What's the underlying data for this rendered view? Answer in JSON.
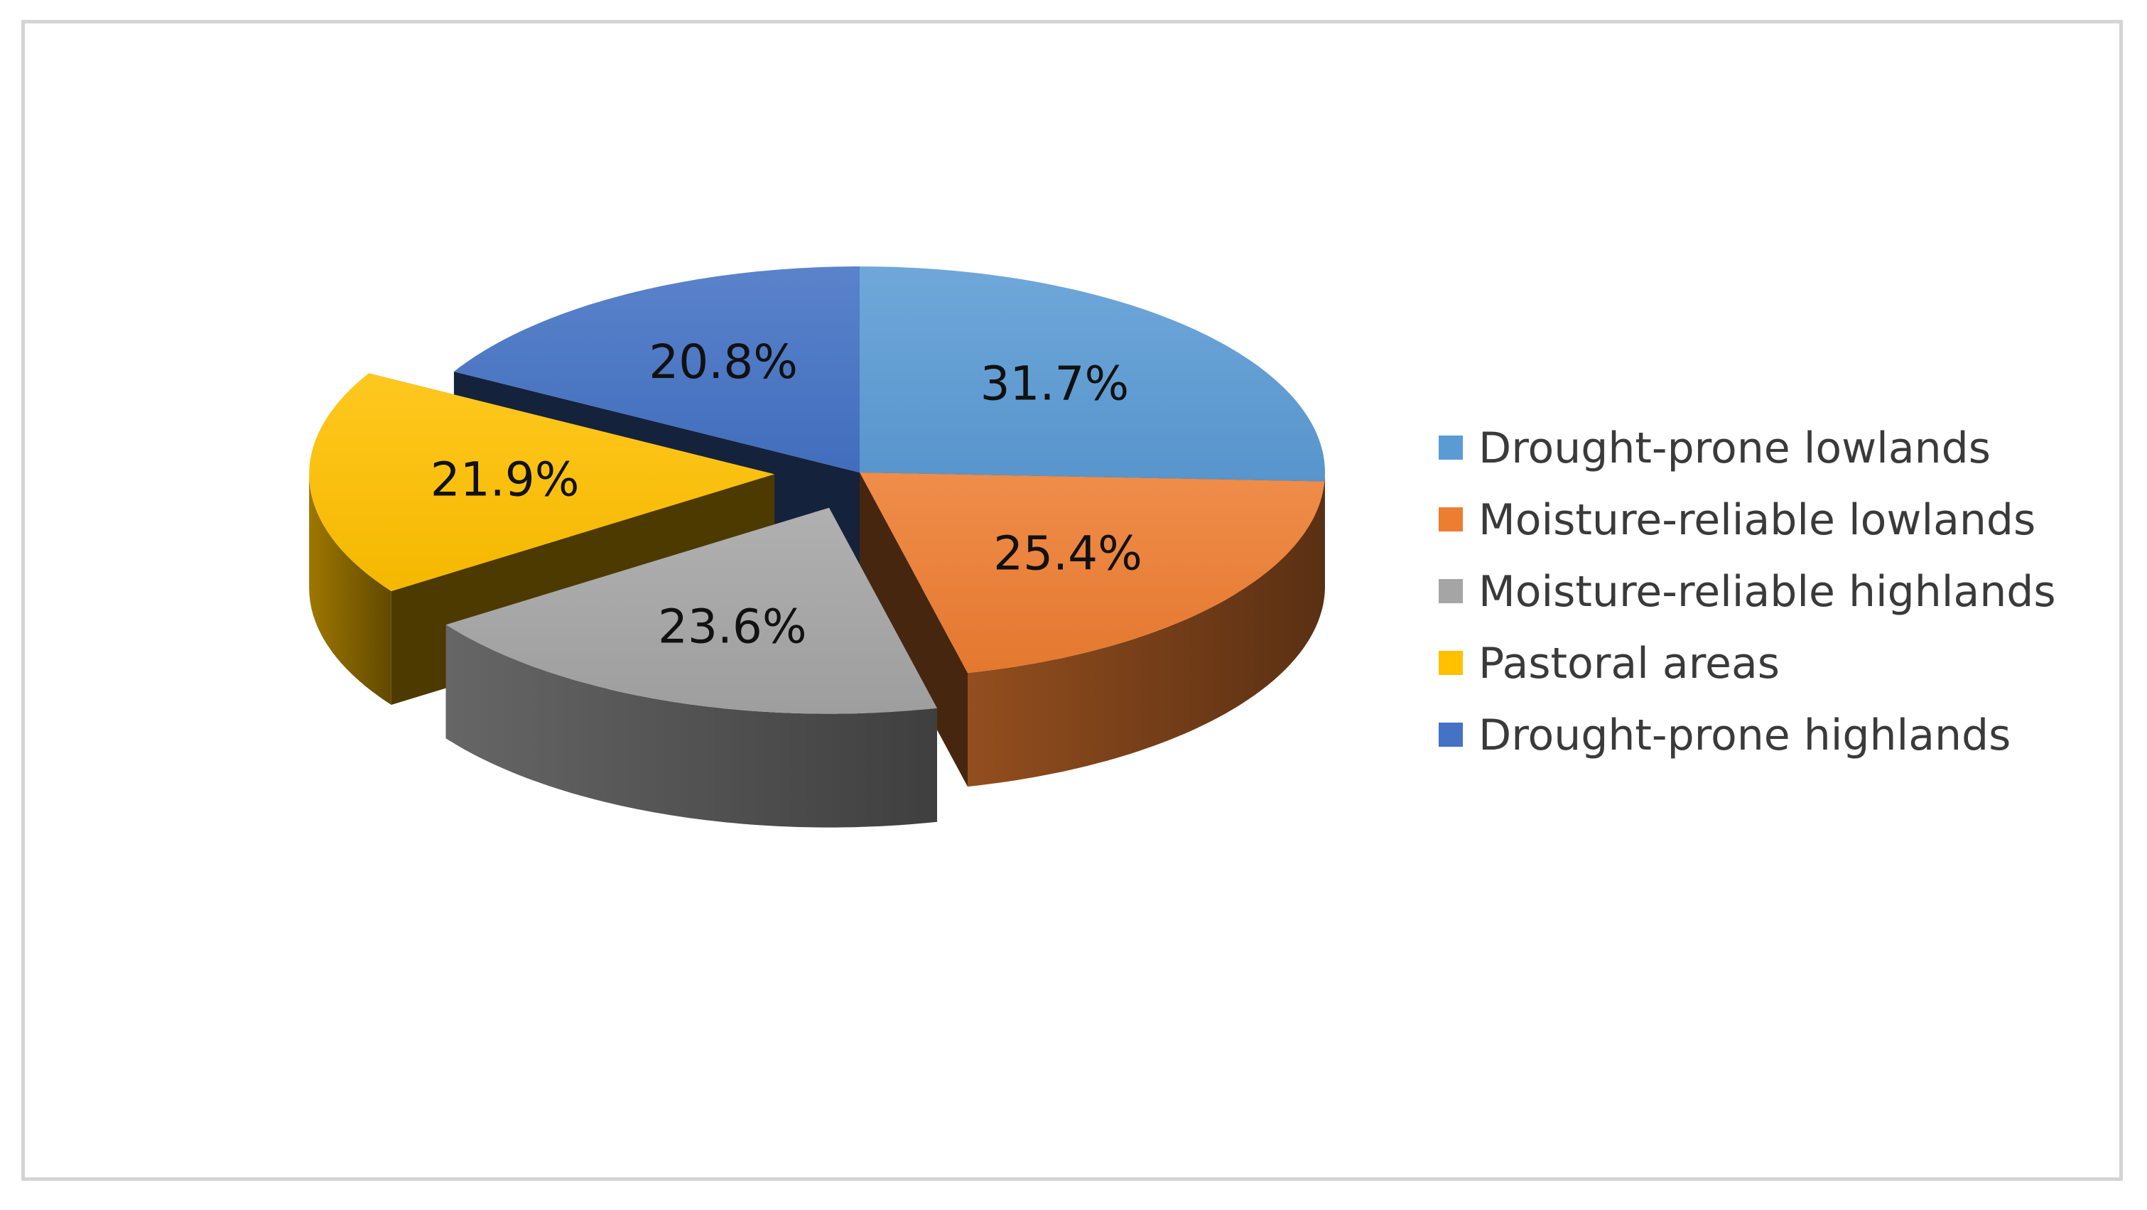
{
  "chart_data": {
    "type": "pie",
    "title": "",
    "legend_position": "right",
    "style": "3d-exploded",
    "exploded": [
      "Pastoral areas",
      "Moisture-reliable highlands"
    ],
    "slices": [
      {
        "name": "Drought-prone lowlands",
        "value": 31.7,
        "label": "31.7%",
        "color": "#5b9bd5"
      },
      {
        "name": "Moisture-reliable lowlands",
        "value": 25.4,
        "label": "25.4%",
        "color": "#ed7d31"
      },
      {
        "name": "Moisture-reliable highlands",
        "value": 23.6,
        "label": "23.6%",
        "color": "#a5a5a5"
      },
      {
        "name": "Pastoral areas",
        "value": 21.9,
        "label": "21.9%",
        "color": "#ffc000"
      },
      {
        "name": "Drought-prone highlands",
        "value": 20.8,
        "label": "20.8%",
        "color": "#4472c4"
      }
    ]
  }
}
